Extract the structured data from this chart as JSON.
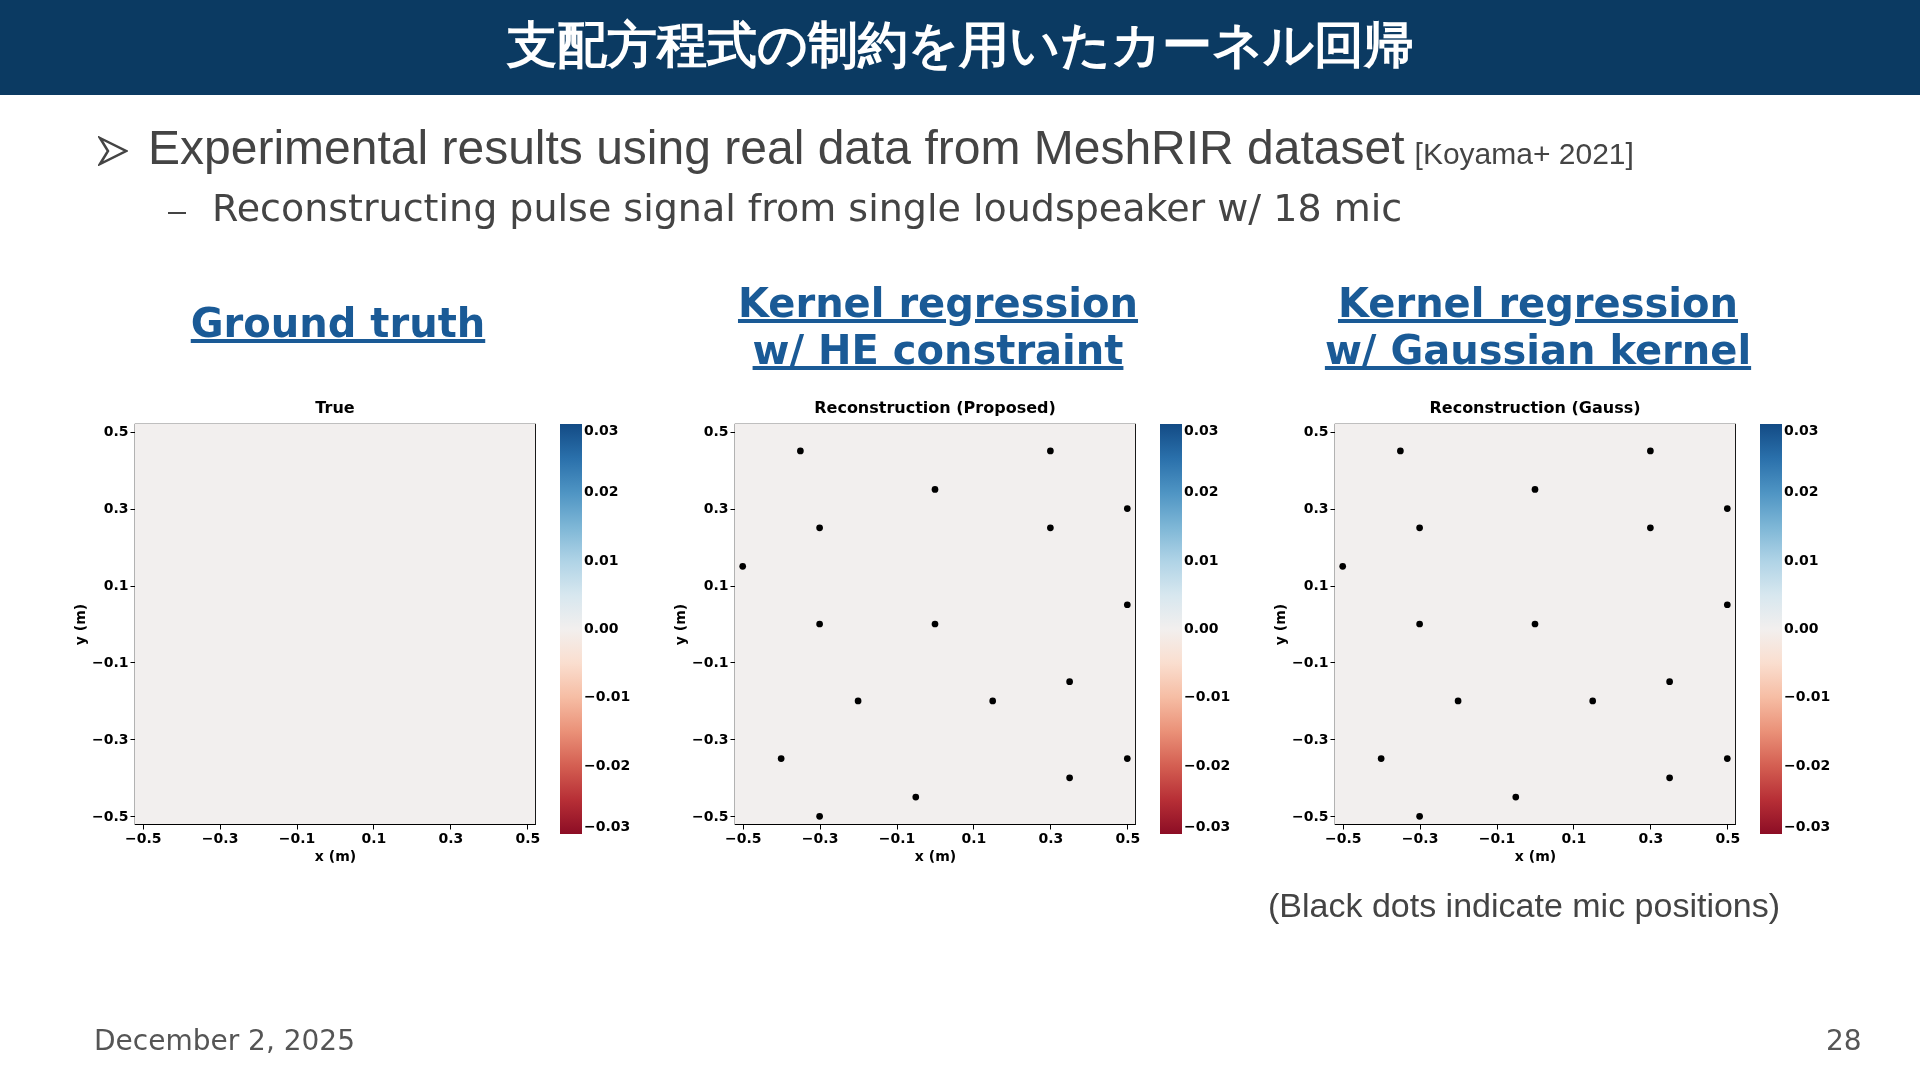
{
  "chart_data": [
    {
      "type": "heatmap",
      "title": "True",
      "subtitle": "Ground truth",
      "xlabel": "x (m)",
      "ylabel": "y (m)",
      "annotations": [
        "支配方程式の制約を用いたカーネル回帰",
        "Experimental results using real data from MeshRIR dataset",
        "[Koyama+ 2021]",
        "Reconstructing pulse signal from single loudspeaker w/ 18 mic",
        "December 2, 2025",
        "28"
      ],
      "xlim": [
        -0.52,
        0.52
      ],
      "ylim": [
        -0.52,
        0.52
      ],
      "xticks": [
        -0.5,
        -0.3,
        -0.1,
        0.1,
        0.3,
        0.5
      ],
      "yticks": [
        -0.5,
        -0.3,
        -0.1,
        0.1,
        0.3,
        0.5
      ],
      "clim": [
        -0.03,
        0.03
      ],
      "cticks": [
        {
          "value": 0.03,
          "label": "0.03"
        },
        {
          "value": 0.02,
          "label": "0.02"
        },
        {
          "value": 0.01,
          "label": "0.01"
        },
        {
          "value": 0,
          "label": "0.00"
        },
        {
          "value": -0.01,
          "label": "−0.01"
        },
        {
          "value": -0.02,
          "label": "−0.02"
        },
        {
          "value": -0.03,
          "label": "−0.03"
        }
      ],
      "cells": [
        [
          0,
          0,
          0,
          0,
          0,
          0,
          0,
          0,
          0,
          0,
          0,
          0,
          0,
          0,
          0,
          0,
          0,
          0,
          0,
          0
        ],
        [
          0,
          0,
          0,
          0,
          0,
          0,
          0,
          0,
          0,
          0,
          0,
          0,
          0,
          0,
          0,
          0,
          0,
          0,
          0,
          0
        ],
        [
          0,
          0,
          0,
          0,
          0,
          0,
          0,
          0,
          0,
          0,
          0,
          0,
          0,
          0,
          0,
          0,
          0,
          0,
          0,
          0
        ],
        [
          0,
          0,
          0,
          0,
          0,
          0,
          0,
          0,
          0,
          0,
          0,
          0,
          0,
          0,
          0,
          0,
          0,
          0,
          0,
          0
        ],
        [
          0,
          0,
          0,
          0,
          0,
          0,
          0,
          0,
          0,
          0,
          0,
          0,
          0,
          0,
          0,
          0,
          0,
          0,
          0,
          0
        ],
        [
          0,
          0,
          0,
          0,
          0,
          0,
          0,
          0,
          0,
          0,
          0,
          0,
          0,
          0,
          0,
          0,
          0,
          0,
          0,
          0
        ],
        [
          0,
          0,
          0,
          0,
          0,
          0,
          0,
          0,
          0,
          0,
          0,
          0,
          0,
          0,
          0,
          0,
          0,
          0,
          0,
          0
        ],
        [
          0,
          0,
          0,
          0,
          0,
          0,
          0,
          0,
          0,
          0,
          0,
          0,
          0,
          0,
          0,
          0,
          0,
          0,
          0,
          0
        ],
        [
          0,
          0,
          0,
          0,
          0,
          0,
          0,
          0,
          0,
          0,
          0,
          0,
          0,
          0,
          0,
          0,
          0,
          0,
          0,
          0
        ],
        [
          0,
          0,
          0,
          0,
          0,
          0,
          0,
          0,
          0,
          0,
          0,
          0,
          0,
          0,
          0,
          0,
          0,
          0,
          0,
          0
        ],
        [
          0,
          0,
          0,
          0,
          0,
          0,
          0,
          0,
          0,
          0,
          0,
          0,
          0,
          0,
          0,
          0,
          0,
          0,
          0,
          0
        ],
        [
          0,
          0,
          0,
          0,
          0,
          0,
          0,
          0,
          0,
          0,
          0,
          0,
          0,
          0,
          0,
          0,
          0,
          0,
          0,
          0
        ],
        [
          0,
          0,
          0,
          0,
          0,
          0,
          0,
          0,
          0,
          0,
          0,
          0,
          0,
          0,
          0,
          0,
          0,
          0,
          0,
          0
        ],
        [
          0,
          0,
          0,
          0,
          0,
          0,
          0,
          0,
          0,
          0,
          0,
          0,
          0,
          0,
          0,
          0,
          0,
          0,
          0,
          0
        ],
        [
          0,
          0,
          0,
          0,
          0,
          0,
          0,
          0,
          0,
          0,
          0,
          0,
          0,
          0,
          0,
          0,
          0,
          0,
          0,
          0
        ],
        [
          0,
          0,
          0,
          0,
          0,
          0,
          0,
          0,
          0,
          0,
          0,
          0,
          0,
          0,
          0,
          0,
          0,
          0,
          0,
          0
        ],
        [
          0,
          0,
          0,
          0,
          0,
          0,
          0,
          0,
          0,
          0,
          0,
          0,
          0,
          0,
          0,
          0,
          0,
          0,
          0,
          0
        ],
        [
          0,
          0,
          0,
          0,
          0,
          0,
          0,
          0,
          0,
          0,
          0,
          0,
          0,
          0,
          0,
          0,
          0,
          0,
          0,
          0
        ],
        [
          0,
          0,
          0,
          0,
          0,
          0,
          0,
          0,
          0,
          0,
          0,
          0,
          0,
          0,
          0,
          0,
          0,
          0,
          0,
          0
        ],
        [
          0,
          0,
          0,
          0,
          0,
          0,
          0,
          0,
          0,
          0,
          0,
          0,
          0,
          0,
          0,
          0,
          0,
          0,
          0,
          0
        ]
      ]
    },
    {
      "type": "heatmap",
      "title": "Reconstruction (Proposed)",
      "subtitle": "Kernel regression\nw/ HE constraint",
      "xlabel": "x (m)",
      "ylabel": "y (m)",
      "xlim": [
        -0.52,
        0.52
      ],
      "ylim": [
        -0.52,
        0.52
      ],
      "xticks": [
        -0.5,
        -0.3,
        -0.1,
        0.1,
        0.3,
        0.5
      ],
      "yticks": [
        -0.5,
        -0.3,
        -0.1,
        0.1,
        0.3,
        0.5
      ],
      "clim": [
        -0.03,
        0.03
      ],
      "cticks": [
        {
          "value": 0.03,
          "label": "0.03"
        },
        {
          "value": 0.02,
          "label": "0.02"
        },
        {
          "value": 0.01,
          "label": "0.01"
        },
        {
          "value": 0,
          "label": "0.00"
        },
        {
          "value": -0.01,
          "label": "−0.01"
        },
        {
          "value": -0.02,
          "label": "−0.02"
        },
        {
          "value": -0.03,
          "label": "−0.03"
        }
      ],
      "marker": "circle",
      "series": [
        {
          "type": "scatter",
          "color": "#000000",
          "x": [
            -0.35,
            0.0,
            0.3,
            0.5,
            -0.3,
            0.3,
            -0.5,
            0.5,
            -0.3,
            0.0,
            0.35,
            -0.2,
            0.15,
            -0.4,
            0.5,
            0.35,
            -0.05,
            -0.3
          ],
          "values": [
            0.45,
            0.35,
            0.45,
            0.3,
            0.25,
            0.25,
            0.15,
            0.05,
            0.0,
            0.0,
            -0.15,
            -0.2,
            -0.2,
            -0.35,
            -0.35,
            -0.4,
            -0.45,
            -0.5
          ]
        }
      ],
      "cells": [
        [
          0,
          0,
          0,
          0,
          0,
          0,
          0,
          0,
          0,
          0,
          0,
          0,
          0,
          0,
          0,
          0,
          0,
          0,
          0,
          0
        ],
        [
          0,
          0,
          0,
          0,
          0,
          0,
          0,
          0,
          0,
          0,
          0,
          0,
          0,
          0,
          0,
          0,
          0,
          0,
          0,
          0
        ],
        [
          0,
          0,
          0,
          0,
          0,
          0,
          0,
          0,
          0,
          0,
          0,
          0,
          0,
          0,
          0,
          0,
          0,
          0,
          0,
          0
        ],
        [
          0,
          0,
          0,
          0,
          0,
          0,
          0,
          0,
          0,
          0,
          0,
          0,
          0,
          0,
          0,
          0,
          0,
          0,
          0,
          0
        ],
        [
          0,
          0,
          0,
          0,
          0,
          0,
          0,
          0,
          0,
          0,
          0,
          0,
          0,
          0,
          0,
          0,
          0,
          0,
          0,
          0
        ],
        [
          0,
          0,
          0,
          0,
          0,
          0,
          0,
          0,
          0,
          0,
          0,
          0,
          0,
          0,
          0,
          0,
          0,
          0,
          0,
          0
        ],
        [
          0,
          0,
          0,
          0,
          0,
          0,
          0,
          0,
          0,
          0,
          0,
          0,
          0,
          0,
          0,
          0,
          0,
          0,
          0,
          0
        ],
        [
          0,
          0,
          0,
          0,
          0,
          0,
          0,
          0,
          0,
          0,
          0,
          0,
          0,
          0,
          0,
          0,
          0,
          0,
          0,
          0
        ],
        [
          0,
          0,
          0,
          0,
          0,
          0,
          0,
          0,
          0,
          0,
          0,
          0,
          0,
          0,
          0,
          0,
          0,
          0,
          0,
          0
        ],
        [
          0,
          0,
          0,
          0,
          0,
          0,
          0,
          0,
          0,
          0,
          0,
          0,
          0,
          0,
          0,
          0,
          0,
          0,
          0,
          0
        ],
        [
          0,
          0,
          0,
          0,
          0,
          0,
          0,
          0,
          0,
          0,
          0,
          0,
          0,
          0,
          0,
          0,
          0,
          0,
          0,
          0
        ],
        [
          0,
          0,
          0,
          0,
          0,
          0,
          0,
          0,
          0,
          0,
          0,
          0,
          0,
          0,
          0,
          0,
          0,
          0,
          0,
          0
        ],
        [
          0,
          0,
          0,
          0,
          0,
          0,
          0,
          0,
          0,
          0,
          0,
          0,
          0,
          0,
          0,
          0,
          0,
          0,
          0,
          0
        ],
        [
          0,
          0,
          0,
          0,
          0,
          0,
          0,
          0,
          0,
          0,
          0,
          0,
          0,
          0,
          0,
          0,
          0,
          0,
          0,
          0
        ],
        [
          0,
          0,
          0,
          0,
          0,
          0,
          0,
          0,
          0,
          0,
          0,
          0,
          0,
          0,
          0,
          0,
          0,
          0,
          0,
          0
        ],
        [
          0,
          0,
          0,
          0,
          0,
          0,
          0,
          0,
          0,
          0,
          0,
          0,
          0,
          0,
          0,
          0,
          0,
          0,
          0,
          0
        ],
        [
          0,
          0,
          0,
          0,
          0,
          0,
          0,
          0,
          0,
          0,
          0,
          0,
          0,
          0,
          0,
          0,
          0,
          0,
          0,
          0
        ],
        [
          0,
          0,
          0,
          0,
          0,
          0,
          0,
          0,
          0,
          0,
          0,
          0,
          0,
          0,
          0,
          0,
          0,
          0,
          0,
          0
        ],
        [
          0,
          0,
          0,
          0,
          0,
          0,
          0,
          0,
          0,
          0,
          0,
          0,
          0,
          0,
          0,
          0,
          0,
          0,
          0,
          0
        ],
        [
          0,
          0,
          0,
          0,
          0,
          0,
          0,
          0,
          0,
          0,
          0,
          0,
          0,
          0,
          0,
          0,
          0,
          0,
          0,
          0
        ]
      ]
    },
    {
      "type": "heatmap",
      "title": "Reconstruction (Gauss)",
      "subtitle": "Kernel regression\nw/ Gaussian kernel",
      "xlabel": "x (m)",
      "ylabel": "y (m)",
      "annotations": [
        "(Black dots indicate mic positions)"
      ],
      "xlim": [
        -0.52,
        0.52
      ],
      "ylim": [
        -0.52,
        0.52
      ],
      "xticks": [
        -0.5,
        -0.3,
        -0.1,
        0.1,
        0.3,
        0.5
      ],
      "yticks": [
        -0.5,
        -0.3,
        -0.1,
        0.1,
        0.3,
        0.5
      ],
      "clim": [
        -0.03,
        0.03
      ],
      "cticks": [
        {
          "value": 0.03,
          "label": "0.03"
        },
        {
          "value": 0.02,
          "label": "0.02"
        },
        {
          "value": 0.01,
          "label": "0.01"
        },
        {
          "value": 0,
          "label": "0.00"
        },
        {
          "value": -0.01,
          "label": "−0.01"
        },
        {
          "value": -0.02,
          "label": "−0.02"
        },
        {
          "value": -0.03,
          "label": "−0.03"
        }
      ],
      "marker": "circle",
      "series": [
        {
          "type": "scatter",
          "color": "#000000",
          "x": [
            -0.35,
            0.0,
            0.3,
            0.5,
            -0.3,
            0.3,
            -0.5,
            0.5,
            -0.3,
            0.0,
            0.35,
            -0.2,
            0.15,
            -0.4,
            0.5,
            0.35,
            -0.05,
            -0.3
          ],
          "values": [
            0.45,
            0.35,
            0.45,
            0.3,
            0.25,
            0.25,
            0.15,
            0.05,
            0.0,
            0.0,
            -0.15,
            -0.2,
            -0.2,
            -0.35,
            -0.35,
            -0.4,
            -0.45,
            -0.5
          ]
        }
      ],
      "cells": [
        [
          0,
          0,
          0,
          0,
          0,
          0,
          0,
          0,
          0,
          0,
          0,
          0,
          0,
          0,
          0,
          0,
          0,
          0,
          0,
          0
        ],
        [
          0,
          0,
          0,
          0,
          0,
          0,
          0,
          0,
          0,
          0,
          0,
          0,
          0,
          0,
          0,
          0,
          0,
          0,
          0,
          0
        ],
        [
          0,
          0,
          0,
          0,
          0,
          0,
          0,
          0,
          0,
          0,
          0,
          0,
          0,
          0,
          0,
          0,
          0,
          0,
          0,
          0
        ],
        [
          0,
          0,
          0,
          0,
          0,
          0,
          0,
          0,
          0,
          0,
          0,
          0,
          0,
          0,
          0,
          0,
          0,
          0,
          0,
          0
        ],
        [
          0,
          0,
          0,
          0,
          0,
          0,
          0,
          0,
          0,
          0,
          0,
          0,
          0,
          0,
          0,
          0,
          0,
          0,
          0,
          0
        ],
        [
          0,
          0,
          0,
          0,
          0,
          0,
          0,
          0,
          0,
          0,
          0,
          0,
          0,
          0,
          0,
          0,
          0,
          0,
          0,
          0
        ],
        [
          0,
          0,
          0,
          0,
          0,
          0,
          0,
          0,
          0,
          0,
          0,
          0,
          0,
          0,
          0,
          0,
          0,
          0,
          0,
          0
        ],
        [
          0,
          0,
          0,
          0,
          0,
          0,
          0,
          0,
          0,
          0,
          0,
          0,
          0,
          0,
          0,
          0,
          0,
          0,
          0,
          0
        ],
        [
          0,
          0,
          0,
          0,
          0,
          0,
          0,
          0,
          0,
          0,
          0,
          0,
          0,
          0,
          0,
          0,
          0,
          0,
          0,
          0
        ],
        [
          0,
          0,
          0,
          0,
          0,
          0,
          0,
          0,
          0,
          0,
          0,
          0,
          0,
          0,
          0,
          0,
          0,
          0,
          0,
          0
        ],
        [
          0,
          0,
          0,
          0,
          0,
          0,
          0,
          0,
          0,
          0,
          0,
          0,
          0,
          0,
          0,
          0,
          0,
          0,
          0,
          0
        ],
        [
          0,
          0,
          0,
          0,
          0,
          0,
          0,
          0,
          0,
          0,
          0,
          0,
          0,
          0,
          0,
          0,
          0,
          0,
          0,
          0
        ],
        [
          0,
          0,
          0,
          0,
          0,
          0,
          0,
          0,
          0,
          0,
          0,
          0,
          0,
          0,
          0,
          0,
          0,
          0,
          0,
          0
        ],
        [
          0,
          0,
          0,
          0,
          0,
          0,
          0,
          0,
          0,
          0,
          0,
          0,
          0,
          0,
          0,
          0,
          0,
          0,
          0,
          0
        ],
        [
          0,
          0,
          0,
          0,
          0,
          0,
          0,
          0,
          0,
          0,
          0,
          0,
          0,
          0,
          0,
          0,
          0,
          0,
          0,
          0
        ],
        [
          0,
          0,
          0,
          0,
          0,
          0,
          0,
          0,
          0,
          0,
          0,
          0,
          0,
          0,
          0,
          0,
          0,
          0,
          0,
          0
        ],
        [
          0,
          0,
          0,
          0,
          0,
          0,
          0,
          0,
          0,
          0,
          0,
          0,
          0,
          0,
          0,
          0,
          0,
          0,
          0,
          0
        ],
        [
          0,
          0,
          0,
          0,
          0,
          0,
          0,
          0,
          0,
          0,
          0,
          0,
          0,
          0,
          0,
          0,
          0,
          0,
          0,
          0
        ],
        [
          0,
          0,
          0,
          0,
          0,
          0,
          0,
          0,
          0,
          0,
          0,
          0,
          0,
          0,
          0,
          0,
          0,
          0,
          0,
          0
        ],
        [
          0,
          0,
          0,
          0,
          0,
          0,
          0,
          0,
          0,
          0,
          0,
          0,
          0,
          0,
          0,
          0,
          0,
          0,
          0,
          0
        ]
      ]
    }
  ]
}
